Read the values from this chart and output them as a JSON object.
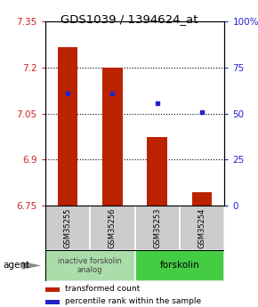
{
  "title": "GDS1039 / 1394624_at",
  "samples": [
    "GSM35255",
    "GSM35256",
    "GSM35253",
    "GSM35254"
  ],
  "bar_values": [
    7.265,
    7.2,
    6.975,
    6.795
  ],
  "bar_bottom": 6.75,
  "bar_color": "#bb2200",
  "blue_marker_values": [
    7.115,
    7.115,
    7.085,
    7.055
  ],
  "blue_marker_color": "#2222cc",
  "ylim_left": [
    6.75,
    7.35
  ],
  "ylim_right": [
    0,
    100
  ],
  "yticks_left": [
    6.75,
    6.9,
    7.05,
    7.2,
    7.35
  ],
  "ytick_labels_left": [
    "6.75",
    "6.9",
    "7.05",
    "7.2",
    "7.35"
  ],
  "yticks_right": [
    0,
    25,
    50,
    75,
    100
  ],
  "ytick_labels_right": [
    "0",
    "25",
    "50",
    "75",
    "100%"
  ],
  "hlines": [
    6.9,
    7.05,
    7.2
  ],
  "groups": [
    {
      "label": "inactive forskolin\nanalog",
      "color": "#aaddaa"
    },
    {
      "label": "forskolin",
      "color": "#44cc44"
    }
  ],
  "agent_label": "agent",
  "legend_bar_label": "transformed count",
  "legend_dot_label": "percentile rank within the sample",
  "sample_bg_color": "#cccccc",
  "title_fontsize": 9.5,
  "tick_fontsize": 7.5,
  "bar_width": 0.45
}
